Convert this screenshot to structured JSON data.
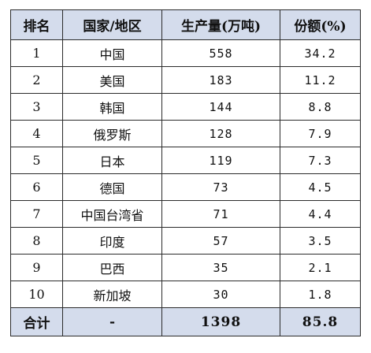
{
  "headers": {
    "rank": "排名",
    "region": "国家/地区",
    "production": "生产量(万吨)",
    "share": "份额(%)"
  },
  "rows": [
    {
      "rank": "1",
      "region": "中国",
      "production": "558",
      "share": "34.2"
    },
    {
      "rank": "2",
      "region": "美国",
      "production": "183",
      "share": "11.2"
    },
    {
      "rank": "3",
      "region": "韩国",
      "production": "144",
      "share": "8.8"
    },
    {
      "rank": "4",
      "region": "俄罗斯",
      "production": "128",
      "share": "7.9"
    },
    {
      "rank": "5",
      "region": "日本",
      "production": "119",
      "share": "7.3"
    },
    {
      "rank": "6",
      "region": "德国",
      "production": "73",
      "share": "4.5"
    },
    {
      "rank": "7",
      "region": "中国台湾省",
      "production": "71",
      "share": "4.4"
    },
    {
      "rank": "8",
      "region": "印度",
      "production": "57",
      "share": "3.5"
    },
    {
      "rank": "9",
      "region": "巴西",
      "production": "35",
      "share": "2.1"
    },
    {
      "rank": "10",
      "region": "新加坡",
      "production": "30",
      "share": "1.8"
    }
  ],
  "total": {
    "label": "合计",
    "region": "-",
    "production": "1398",
    "share": "85.8"
  },
  "colors": {
    "header_bg": "#d4dcec",
    "border": "#2b2b2b"
  }
}
